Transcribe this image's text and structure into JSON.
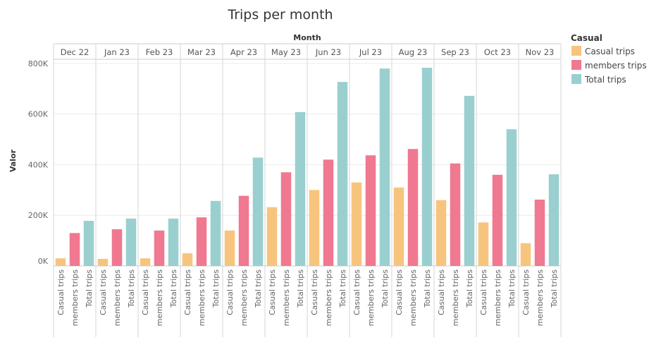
{
  "chart_data": {
    "type": "bar",
    "title": "Trips per month",
    "column_header": "Month",
    "ylabel": "Valor",
    "ylim": [
      0,
      850000
    ],
    "yticks": [
      {
        "value": 0,
        "label": "0K"
      },
      {
        "value": 200000,
        "label": "200K"
      },
      {
        "value": 400000,
        "label": "400K"
      },
      {
        "value": 600000,
        "label": "600K"
      },
      {
        "value": 800000,
        "label": "800K"
      }
    ],
    "categories": [
      "Dec 22",
      "Jan 23",
      "Feb 23",
      "Mar 23",
      "Apr 23",
      "May 23",
      "Jun 23",
      "Jul 23",
      "Aug 23",
      "Sep 23",
      "Oct 23",
      "Nov 23"
    ],
    "series": [
      {
        "name": "Casual trips",
        "color": "#f7c47e",
        "values": [
          30000,
          28000,
          30000,
          50000,
          140000,
          232000,
          300000,
          330000,
          310000,
          260000,
          172000,
          90000
        ]
      },
      {
        "name": "members trips",
        "color": "#f07890",
        "values": [
          130000,
          145000,
          140000,
          192000,
          277000,
          370000,
          420000,
          437000,
          462000,
          405000,
          360000,
          262000
        ]
      },
      {
        "name": "Total trips",
        "color": "#9acfcf",
        "values": [
          178000,
          187000,
          187000,
          257000,
          428000,
          608000,
          727000,
          780000,
          783000,
          672000,
          540000,
          362000
        ]
      }
    ],
    "legend": {
      "title": "Casual",
      "position": "top-right"
    },
    "grid": true
  }
}
